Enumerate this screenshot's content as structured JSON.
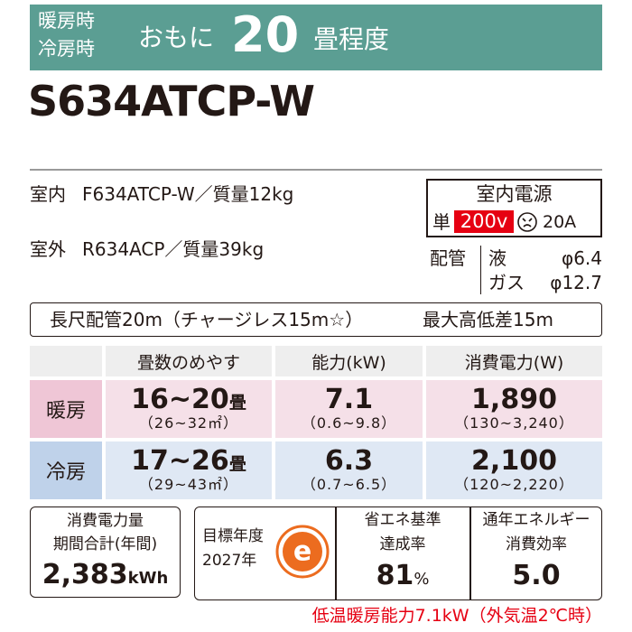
{
  "banner": {
    "modes": [
      "暖房時",
      "冷房時"
    ],
    "prefix": "おもに",
    "size": "20",
    "suffix": "畳程度"
  },
  "model": "S634ATCP-W",
  "units": {
    "indoor": {
      "label": "室内",
      "spec": "F634ATCP-W／質量12kg"
    },
    "outdoor": {
      "label": "室外",
      "spec": "R634ACP／質量39kg"
    }
  },
  "power": {
    "title": "室内電源",
    "phase": "単",
    "voltage": "200v",
    "current": "20A"
  },
  "piping": {
    "label": "配管",
    "liquid": {
      "name": "液",
      "size": "φ6.4"
    },
    "gas": {
      "name": "ガス",
      "size": "φ12.7"
    }
  },
  "long_piping": "長尺配管20m（チャージレス15m☆）",
  "max_height": "最大高低差15m",
  "table": {
    "headers": [
      "畳数のめやす",
      "能力(kW)",
      "消費電力(W)"
    ],
    "rows": [
      {
        "mode": "暖房",
        "cells": [
          {
            "main": "16~20",
            "unit": "畳",
            "range": "（26~32㎡）"
          },
          {
            "main": "7.1",
            "range": "（0.6~9.8）"
          },
          {
            "main": "1,890",
            "range": "（130~3,240）"
          }
        ]
      },
      {
        "mode": "冷房",
        "cells": [
          {
            "main": "17~26",
            "unit": "畳",
            "range": "（29~43㎡）"
          },
          {
            "main": "6.3",
            "range": "（0.7~6.5）"
          },
          {
            "main": "2,100",
            "range": "（120~2,220）"
          }
        ]
      }
    ]
  },
  "annual": {
    "label": [
      "消費電力量",
      "期間合計(年間)"
    ],
    "value": "2,383",
    "unit": "kWh"
  },
  "target": {
    "label": "目標年度",
    "year": "2027年",
    "mark": "e"
  },
  "achievement": {
    "label": [
      "省エネ基準",
      "達成率"
    ],
    "value": "81",
    "unit": "%"
  },
  "apf": {
    "label": [
      "通年エネルギー",
      "消費効率"
    ],
    "value": "5.0"
  },
  "note": "低温暖房能力7.1kW（外気温2℃時）"
}
